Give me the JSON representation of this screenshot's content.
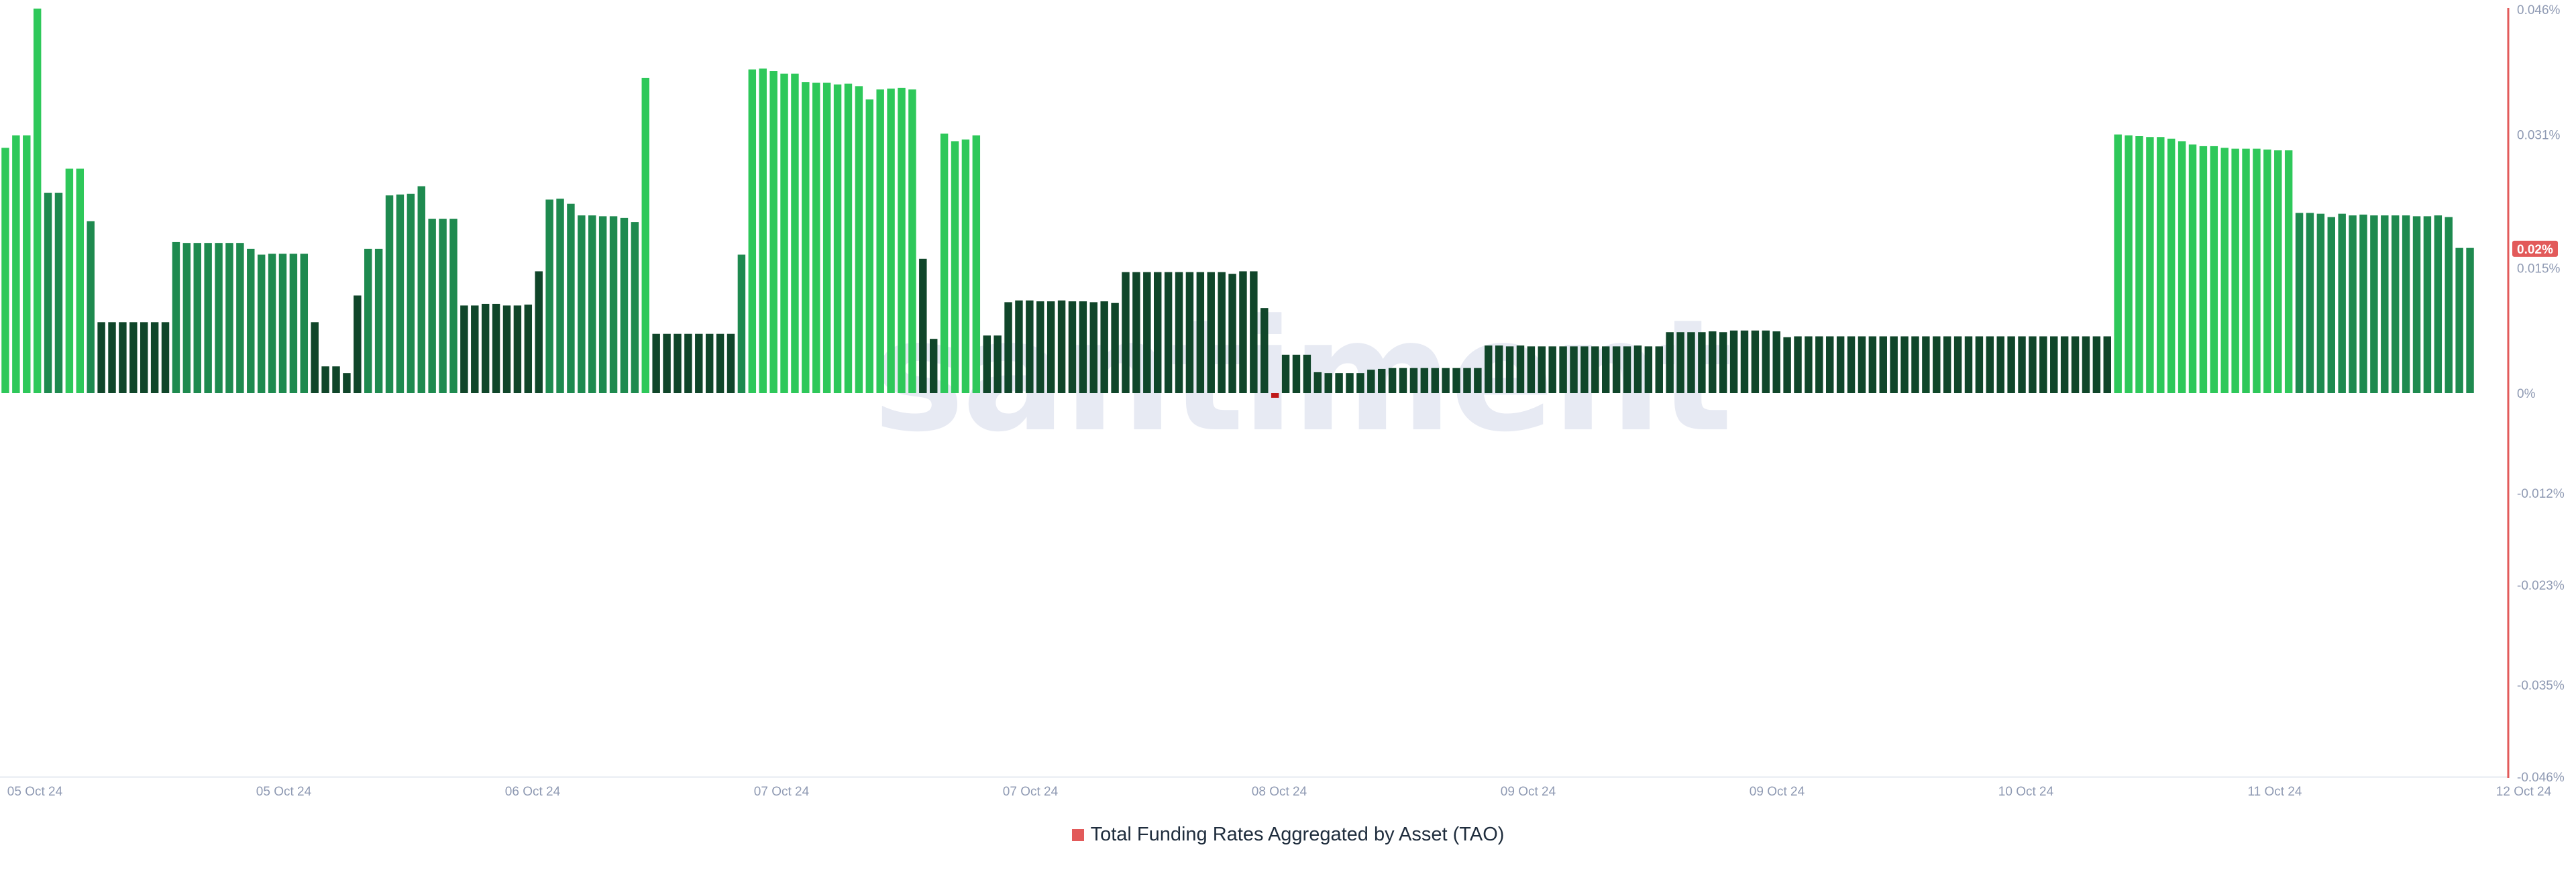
{
  "chart_data": {
    "type": "bar",
    "title": "",
    "xlabel": "",
    "ylabel": "",
    "ylim": [
      -0.046,
      0.046
    ],
    "unit": "%",
    "y_ticks": [
      "0.046%",
      "0.031%",
      "0.015%",
      "0%",
      "-0.012%",
      "-0.023%",
      "-0.035%",
      "-0.046%"
    ],
    "x_ticks": [
      "05 Oct 24",
      "05 Oct 24",
      "06 Oct 24",
      "07 Oct 24",
      "07 Oct 24",
      "08 Oct 24",
      "09 Oct 24",
      "09 Oct 24",
      "10 Oct 24",
      "11 Oct 24",
      "12 Oct 24"
    ],
    "current_value_label": "0.02%",
    "current_value": 0.0173,
    "watermark": "santiment",
    "colors": {
      "bar_high": "#2ec85a",
      "bar_mid": "#1e8a4f",
      "bar_low": "#10462a",
      "bar_negative": "#c01919",
      "axis_line": "#e25a5a",
      "badge": "#e25a5a"
    },
    "series": [
      {
        "name": "Total Funding Rates Aggregated by Asset (TAO)",
        "values": [
          0.0294,
          0.0309,
          0.0309,
          0.0461,
          0.024,
          0.024,
          0.0269,
          0.0269,
          0.0206,
          0.0085,
          0.0085,
          0.0085,
          0.0085,
          0.0085,
          0.0085,
          0.0085,
          0.0181,
          0.018,
          0.018,
          0.018,
          0.018,
          0.018,
          0.018,
          0.0173,
          0.0166,
          0.0167,
          0.0167,
          0.0167,
          0.0167,
          0.0085,
          0.0032,
          0.0032,
          0.0024,
          0.0117,
          0.0173,
          0.0173,
          0.0237,
          0.0238,
          0.0239,
          0.0248,
          0.0209,
          0.0209,
          0.0209,
          0.0105,
          0.0105,
          0.0107,
          0.0107,
          0.0105,
          0.0105,
          0.0106,
          0.0146,
          0.0232,
          0.0233,
          0.0227,
          0.0213,
          0.0213,
          0.0212,
          0.0212,
          0.021,
          0.0205,
          0.0378,
          0.0071,
          0.0071,
          0.0071,
          0.0071,
          0.0071,
          0.0071,
          0.0071,
          0.0071,
          0.0166,
          0.0388,
          0.0389,
          0.0386,
          0.0383,
          0.0383,
          0.0373,
          0.0372,
          0.0372,
          0.037,
          0.0371,
          0.0368,
          0.0352,
          0.0364,
          0.0365,
          0.0366,
          0.0364,
          0.0161,
          0.0065,
          0.0311,
          0.0302,
          0.0304,
          0.0309,
          0.0069,
          0.0069,
          0.0109,
          0.0111,
          0.0111,
          0.011,
          0.011,
          0.0111,
          0.011,
          0.011,
          0.0109,
          0.011,
          0.0108,
          0.0145,
          0.0145,
          0.0145,
          0.0145,
          0.0145,
          0.0145,
          0.0145,
          0.0145,
          0.0145,
          0.0145,
          0.0143,
          0.0146,
          0.0146,
          0.0102,
          -0.0005,
          0.0046,
          0.0046,
          0.0046,
          0.0025,
          0.0024,
          0.0024,
          0.0024,
          0.0024,
          0.0028,
          0.0029,
          0.003,
          0.003,
          0.003,
          0.003,
          0.003,
          0.003,
          0.003,
          0.003,
          0.003,
          0.0057,
          0.0057,
          0.0056,
          0.0057,
          0.0056,
          0.0056,
          0.0056,
          0.0056,
          0.0056,
          0.0056,
          0.0056,
          0.0056,
          0.0056,
          0.0056,
          0.0057,
          0.0056,
          0.0056,
          0.0073,
          0.0073,
          0.0073,
          0.0073,
          0.0074,
          0.0073,
          0.0075,
          0.0075,
          0.0075,
          0.0075,
          0.0074,
          0.0067,
          0.0068,
          0.0068,
          0.0068,
          0.0068,
          0.0068,
          0.0068,
          0.0068,
          0.0068,
          0.0068,
          0.0068,
          0.0068,
          0.0068,
          0.0068,
          0.0068,
          0.0068,
          0.0068,
          0.0068,
          0.0068,
          0.0068,
          0.0068,
          0.0068,
          0.0068,
          0.0068,
          0.0068,
          0.0068,
          0.0068,
          0.0068,
          0.0068,
          0.0068,
          0.0068,
          0.031,
          0.0309,
          0.0308,
          0.0307,
          0.0307,
          0.0305,
          0.0302,
          0.0298,
          0.0296,
          0.0296,
          0.0294,
          0.0293,
          0.0293,
          0.0293,
          0.0292,
          0.0291,
          0.0291,
          0.0216,
          0.0216,
          0.0215,
          0.0211,
          0.0215,
          0.0213,
          0.0214,
          0.0213,
          0.0213,
          0.0213,
          0.0213,
          0.0212,
          0.0212,
          0.0213,
          0.0211,
          0.0174,
          0.0174
        ]
      }
    ]
  },
  "legend": {
    "label": "Total Funding Rates Aggregated by Asset (TAO)"
  }
}
